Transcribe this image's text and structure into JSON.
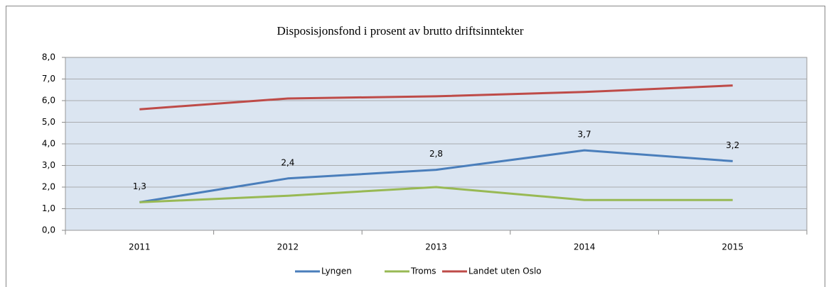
{
  "chart_data": {
    "type": "line",
    "title": "Disposisjonsfond i prosent av brutto driftsinntekter",
    "categories": [
      "2011",
      "2012",
      "2013",
      "2014",
      "2015"
    ],
    "series": [
      {
        "name": "Lyngen",
        "color": "#4a7ebb",
        "values": [
          1.3,
          2.4,
          2.8,
          3.7,
          3.2
        ],
        "value_labels": [
          "1,3",
          "2,4",
          "2,8",
          "3,7",
          "3,2"
        ]
      },
      {
        "name": "Troms",
        "color": "#98b954",
        "values": [
          1.3,
          1.6,
          2.0,
          1.4,
          1.4
        ]
      },
      {
        "name": "Landet uten Oslo",
        "color": "#be4b48",
        "values": [
          5.6,
          6.1,
          6.2,
          6.4,
          6.7
        ]
      }
    ],
    "ylim": [
      0,
      8
    ],
    "yticks": [
      {
        "value": 0,
        "label": "0,0"
      },
      {
        "value": 1,
        "label": "1,0"
      },
      {
        "value": 2,
        "label": "2,0"
      },
      {
        "value": 3,
        "label": "3,0"
      },
      {
        "value": 4,
        "label": "4,0"
      },
      {
        "value": 5,
        "label": "5,0"
      },
      {
        "value": 6,
        "label": "6,0"
      },
      {
        "value": 7,
        "label": "7,0"
      },
      {
        "value": 8,
        "label": "8,0"
      }
    ],
    "grid": true,
    "legend": "bottom"
  }
}
